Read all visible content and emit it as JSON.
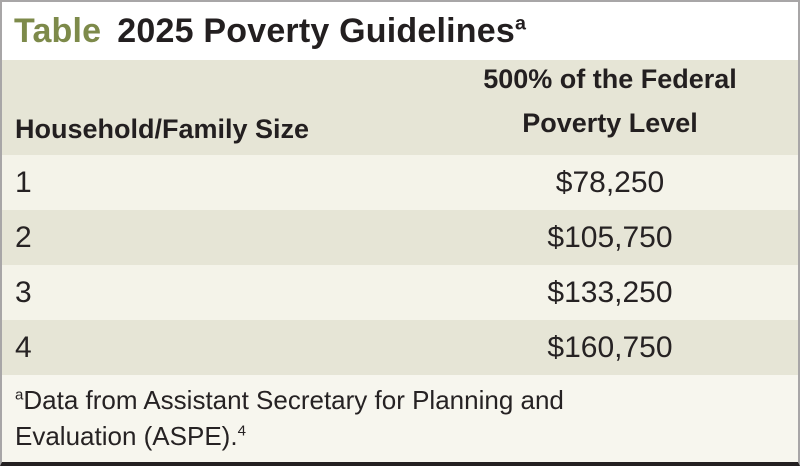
{
  "title": {
    "prefix": "Table",
    "text": "2025 Poverty Guidelines",
    "superscript": "a"
  },
  "header": {
    "col1": "Household/Family Size",
    "col2_line1": "500% of the Federal",
    "col2_line2": "Poverty Level"
  },
  "chart_data": {
    "type": "table",
    "title": "2025 Poverty Guidelines",
    "columns": [
      "Household/Family Size",
      "500% of the Federal Poverty Level"
    ],
    "rows": [
      {
        "size": "1",
        "amount": "$78,250"
      },
      {
        "size": "2",
        "amount": "$105,750"
      },
      {
        "size": "3",
        "amount": "$133,250"
      },
      {
        "size": "4",
        "amount": "$160,750"
      }
    ],
    "footnote": "Data from Assistant Secretary for Planning and Evaluation (ASPE).",
    "footnote_marker": "a",
    "citation_number": "4"
  },
  "footnote": {
    "marker": "a",
    "line1": "Data from Assistant Secretary for Planning and",
    "line2": "Evaluation (ASPE).",
    "citation_sup": "4"
  },
  "colors": {
    "title_accent": "#7d8a4a",
    "header_bg": "#e6e5d6",
    "row_shaded_bg": "#e6e5d6",
    "row_light_bg": "#f4f3e9",
    "footnote_bg": "#f7f6ee",
    "text": "#262223",
    "frame_border": "#a8a6a7",
    "bottom_border": "#242021"
  }
}
